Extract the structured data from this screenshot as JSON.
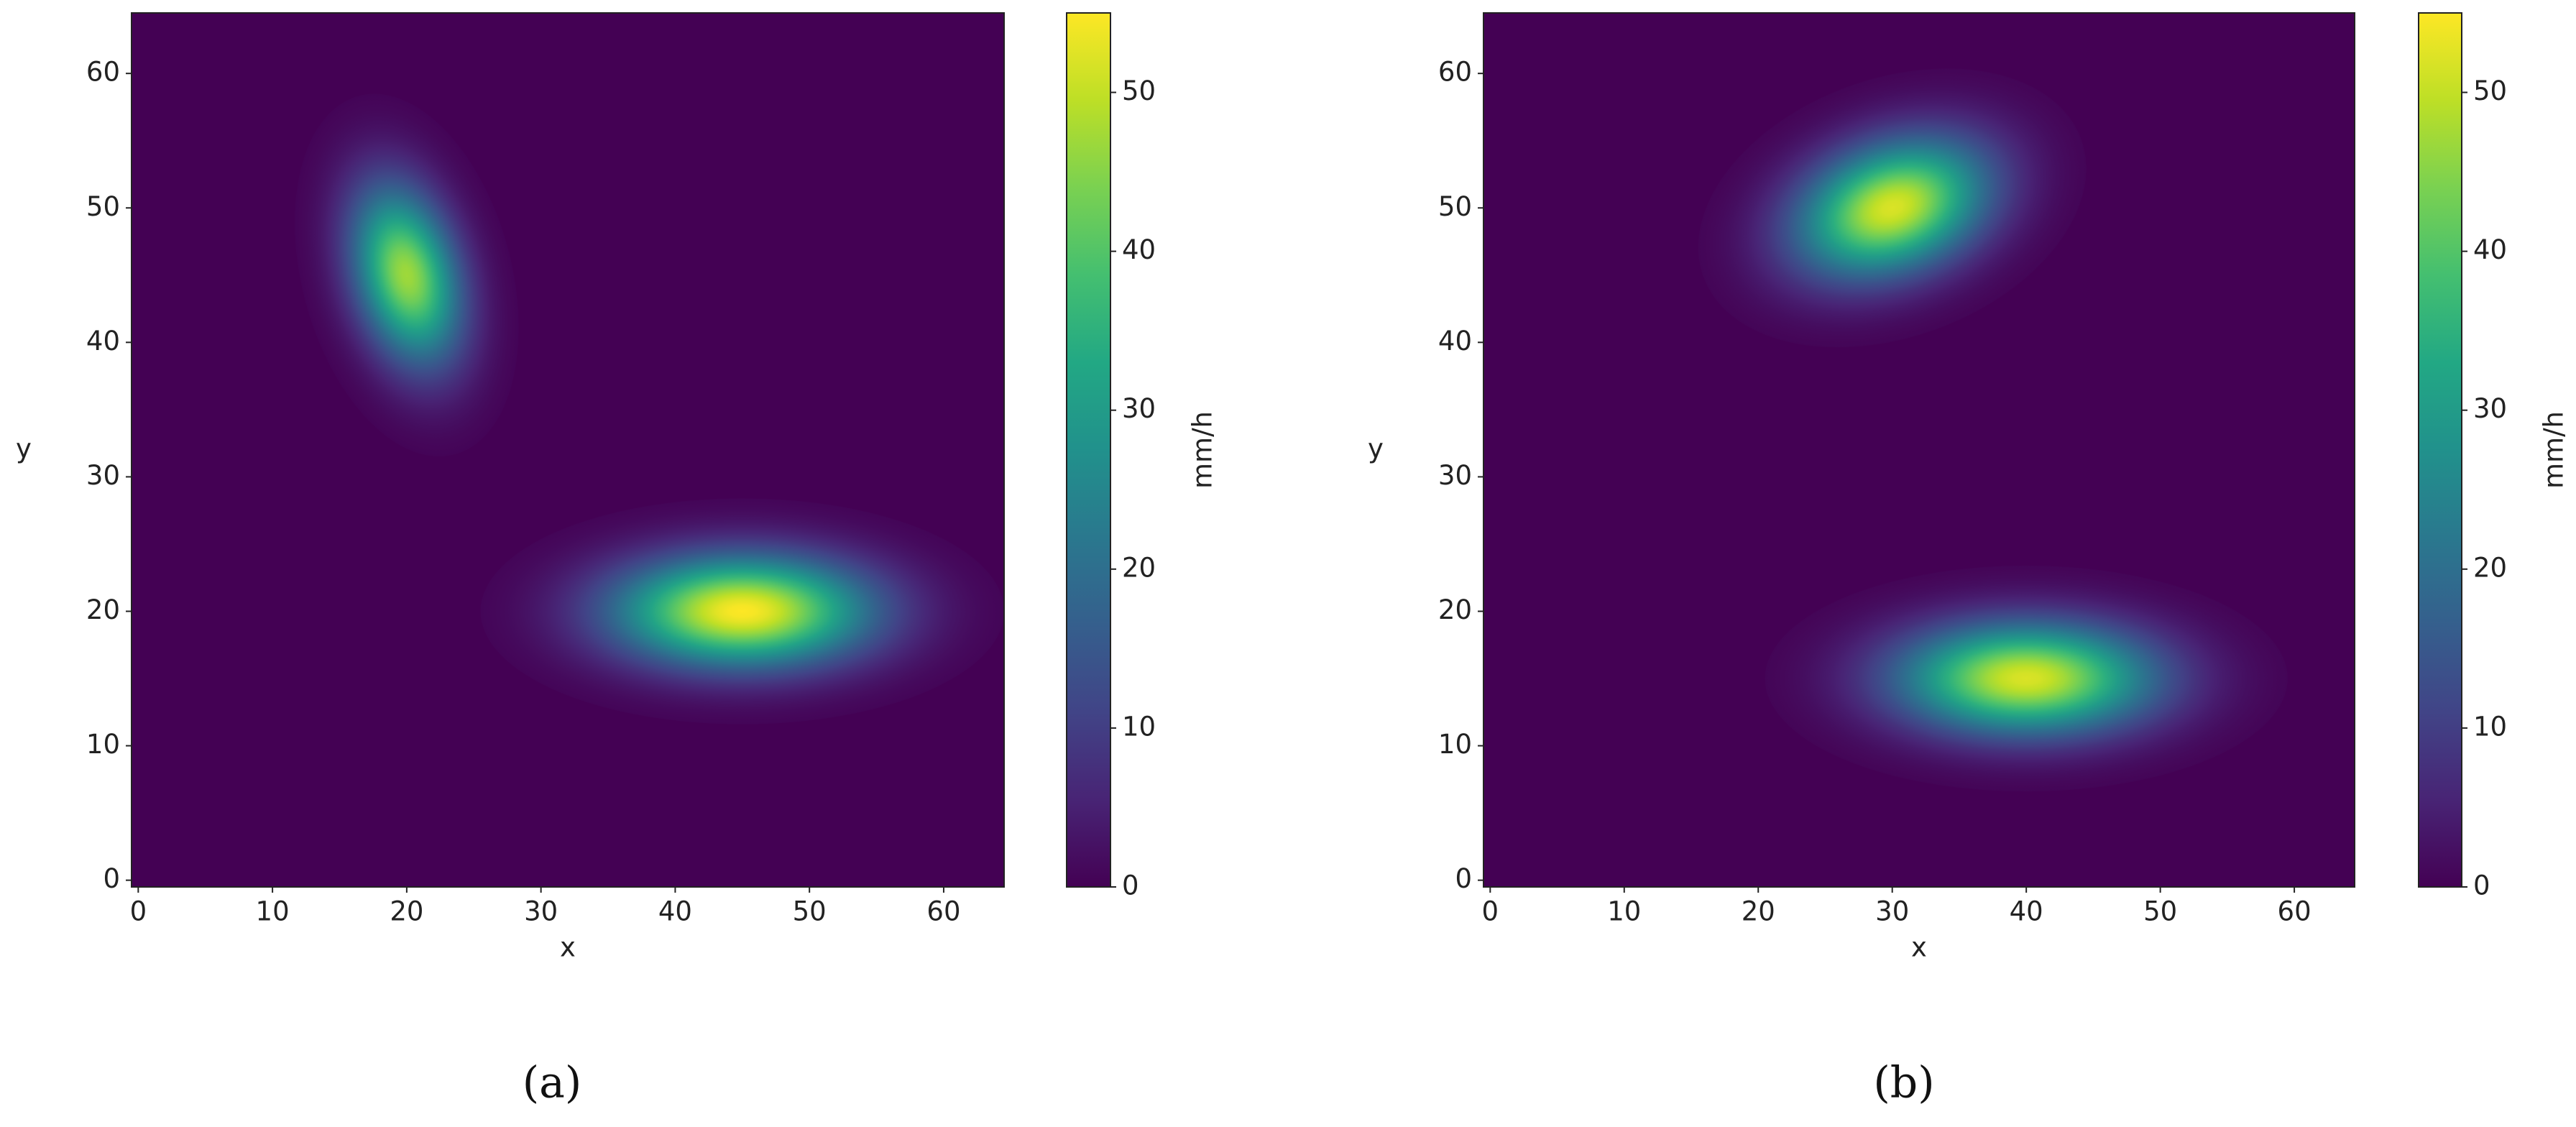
{
  "chart_data": [
    {
      "type": "heatmap",
      "caption": "(a)",
      "xlabel": "x",
      "ylabel": "y",
      "xlim": [
        -0.5,
        64.5
      ],
      "ylim": [
        -0.5,
        64.5
      ],
      "xticks": [
        0,
        10,
        20,
        30,
        40,
        50,
        60
      ],
      "yticks": [
        0,
        10,
        20,
        30,
        40,
        50,
        60
      ],
      "colormap": "viridis",
      "colorbar": {
        "label": "mm/h",
        "lim": [
          0,
          55
        ],
        "ticks": [
          0,
          10,
          20,
          30,
          40,
          50
        ]
      },
      "blobs": [
        {
          "x": 20,
          "y": 45,
          "peak": 47,
          "sx": 2.6,
          "sy": 4.6,
          "angle": -15
        },
        {
          "x": 45,
          "y": 20,
          "peak": 55,
          "sx": 6.5,
          "sy": 2.8,
          "angle": 0
        }
      ]
    },
    {
      "type": "heatmap",
      "caption": "(b)",
      "xlabel": "x",
      "ylabel": "y",
      "xlim": [
        -0.5,
        64.5
      ],
      "ylim": [
        -0.5,
        64.5
      ],
      "xticks": [
        0,
        10,
        20,
        30,
        40,
        50,
        60
      ],
      "yticks": [
        0,
        10,
        20,
        30,
        40,
        50,
        60
      ],
      "colormap": "viridis",
      "colorbar": {
        "label": "mm/h",
        "lim": [
          0,
          55
        ],
        "ticks": [
          0,
          10,
          20,
          30,
          40,
          50
        ]
      },
      "blobs": [
        {
          "x": 30,
          "y": 50,
          "peak": 52,
          "sx": 5,
          "sy": 3.2,
          "angle": -20
        },
        {
          "x": 40,
          "y": 15,
          "peak": 52,
          "sx": 6.5,
          "sy": 2.8,
          "angle": 0
        }
      ]
    }
  ]
}
